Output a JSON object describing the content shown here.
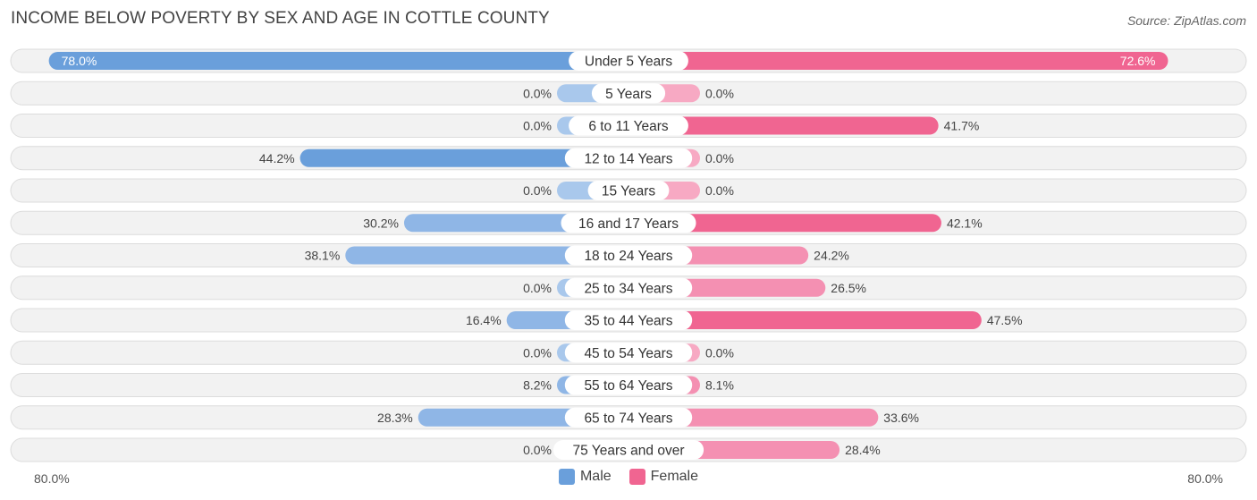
{
  "chart_data": {
    "type": "bar",
    "orientation": "horizontal-diverging",
    "title": "INCOME BELOW POVERTY BY SEX AND AGE IN COTTLE COUNTY",
    "source": "Source: ZipAtlas.com",
    "categories": [
      "Under 5 Years",
      "5 Years",
      "6 to 11 Years",
      "12 to 14 Years",
      "15 Years",
      "16 and 17 Years",
      "18 to 24 Years",
      "25 to 34 Years",
      "35 to 44 Years",
      "45 to 54 Years",
      "55 to 64 Years",
      "65 to 74 Years",
      "75 Years and over"
    ],
    "series": [
      {
        "name": "Male",
        "values": [
          78.0,
          0.0,
          0.0,
          44.2,
          0.0,
          30.2,
          38.1,
          0.0,
          16.4,
          0.0,
          8.2,
          28.3,
          0.0
        ],
        "labels": [
          "78.0%",
          "0.0%",
          "0.0%",
          "44.2%",
          "0.0%",
          "30.2%",
          "38.1%",
          "0.0%",
          "16.4%",
          "0.0%",
          "8.2%",
          "28.3%",
          "0.0%"
        ]
      },
      {
        "name": "Female",
        "values": [
          72.6,
          0.0,
          41.7,
          0.0,
          0.0,
          42.1,
          24.2,
          26.5,
          47.5,
          0.0,
          8.1,
          33.6,
          28.4
        ],
        "labels": [
          "72.6%",
          "0.0%",
          "41.7%",
          "0.0%",
          "0.0%",
          "42.1%",
          "24.2%",
          "26.5%",
          "47.5%",
          "0.0%",
          "8.1%",
          "33.6%",
          "28.4%"
        ]
      }
    ],
    "xlim": [
      -80,
      80
    ],
    "axis_left_label": "80.0%",
    "axis_right_label": "80.0%",
    "legend_position": "bottom-center"
  },
  "colors": {
    "male": "#6a9fdb",
    "male_light": "#a9c8ec",
    "female": "#f06591",
    "female_light": "#f7a9c3",
    "row_bg": "#f2f2f2",
    "row_border": "#dcdcdc"
  },
  "legend": {
    "male": "Male",
    "female": "Female"
  }
}
